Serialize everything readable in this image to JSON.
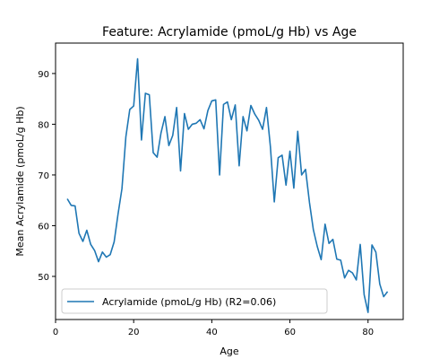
{
  "chart_data": {
    "type": "line",
    "title": "Feature: Acrylamide (pmoL/g Hb) vs Age",
    "xlabel": "Age",
    "ylabel": "Mean Acrylamide (pmoL/g Hb)",
    "xlim": [
      0,
      89
    ],
    "ylim": [
      41.5,
      96
    ],
    "xticks": [
      0,
      20,
      40,
      60,
      80
    ],
    "yticks": [
      50,
      60,
      70,
      80,
      90
    ],
    "grid": false,
    "legend_position": "lower-left",
    "series": [
      {
        "name": "Acrylamide (pmoL/g Hb) (R2=0.06)",
        "color": "#1f77b4",
        "x": [
          3,
          4,
          5,
          6,
          7,
          8,
          9,
          10,
          11,
          12,
          13,
          14,
          15,
          16,
          17,
          18,
          19,
          20,
          21,
          22,
          23,
          24,
          25,
          26,
          27,
          28,
          29,
          30,
          31,
          32,
          33,
          34,
          35,
          36,
          37,
          38,
          39,
          40,
          41,
          42,
          43,
          44,
          45,
          46,
          47,
          48,
          49,
          50,
          51,
          52,
          53,
          54,
          55,
          56,
          57,
          58,
          59,
          60,
          61,
          62,
          63,
          64,
          65,
          66,
          67,
          68,
          69,
          70,
          71,
          72,
          73,
          74,
          75,
          76,
          77,
          78,
          79,
          80,
          81,
          82,
          83,
          84,
          85
        ],
        "y": [
          65.3,
          64.0,
          63.9,
          58.5,
          56.9,
          59.1,
          56.3,
          55.1,
          52.9,
          54.8,
          53.8,
          54.3,
          56.8,
          62.3,
          67.3,
          77.5,
          82.9,
          83.6,
          92.9,
          76.9,
          86.1,
          85.8,
          74.4,
          73.5,
          78.3,
          81.5,
          75.8,
          77.8,
          83.3,
          70.8,
          82.1,
          79.0,
          80.0,
          80.2,
          80.9,
          79.1,
          82.7,
          84.6,
          84.8,
          70.0,
          83.9,
          84.4,
          80.9,
          83.8,
          71.8,
          81.5,
          78.7,
          83.7,
          82.0,
          80.8,
          79.0,
          83.3,
          75.6,
          64.7,
          73.4,
          73.9,
          68.0,
          74.7,
          67.4,
          78.6,
          70.0,
          71.1,
          64.6,
          59.2,
          55.9,
          53.3,
          60.3,
          56.5,
          57.3,
          53.4,
          53.2,
          49.7,
          51.2,
          50.7,
          49.3,
          56.3,
          46.4,
          42.9,
          56.2,
          54.8,
          48.5,
          46.0,
          47.0
        ]
      }
    ]
  }
}
